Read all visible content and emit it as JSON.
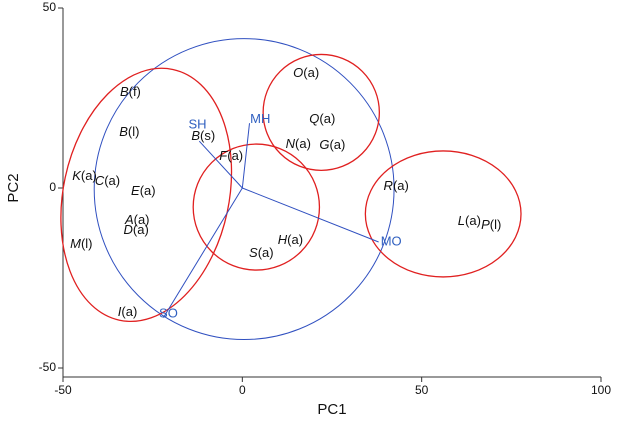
{
  "chart_data": {
    "type": "biplot",
    "x_label": "PC1",
    "y_label": "PC2",
    "xlim": [
      -50,
      100
    ],
    "ylim": [
      -50,
      50
    ],
    "xticks": [
      -50,
      0,
      50,
      100
    ],
    "yticks": [
      -50,
      0,
      50
    ],
    "points": [
      {
        "letter": "B",
        "suffix": "(f)",
        "x": -31.2,
        "y": 26.4
      },
      {
        "letter": "B",
        "suffix": "(l)",
        "x": -31.5,
        "y": 15.3
      },
      {
        "letter": "B",
        "suffix": "(s)",
        "x": -10.9,
        "y": 14.2
      },
      {
        "letter": "F",
        "suffix": "(a)",
        "x": -3.1,
        "y": 8.6
      },
      {
        "letter": "K",
        "suffix": "(a)",
        "x": -44,
        "y": 3.1
      },
      {
        "letter": "C",
        "suffix": "(a)",
        "x": -37.6,
        "y": 1.7
      },
      {
        "letter": "E",
        "suffix": "(a)",
        "x": -27.6,
        "y": -1.1
      },
      {
        "letter": "A",
        "suffix": "(a)",
        "x": -29.3,
        "y": -9.2
      },
      {
        "letter": "D",
        "suffix": "(a)",
        "x": -29.6,
        "y": -11.9
      },
      {
        "letter": "M",
        "suffix": "(l)",
        "x": -44.9,
        "y": -15.8
      },
      {
        "letter": "I",
        "suffix": "(a)",
        "x": -32,
        "y": -34.7
      },
      {
        "letter": "O",
        "suffix": "(a)",
        "x": 17.8,
        "y": 31.7
      },
      {
        "letter": "Q",
        "suffix": "(a)",
        "x": 22.3,
        "y": 18.9
      },
      {
        "letter": "N",
        "suffix": "(a)",
        "x": 15.6,
        "y": 11.9
      },
      {
        "letter": "G",
        "suffix": "(a)",
        "x": 25.1,
        "y": 11.7
      },
      {
        "letter": "R",
        "suffix": "(a)",
        "x": 42.9,
        "y": 0.3
      },
      {
        "letter": "H",
        "suffix": "(a)",
        "x": 13.4,
        "y": -14.7
      },
      {
        "letter": "S",
        "suffix": "(a)",
        "x": 5.3,
        "y": -18.3
      },
      {
        "letter": "L",
        "suffix": "(a)",
        "x": 63.3,
        "y": -9.4
      },
      {
        "letter": "P",
        "suffix": "(l)",
        "x": 69.4,
        "y": -10.6
      }
    ],
    "variables": [
      {
        "name": "SH",
        "x": -12,
        "y": 13,
        "label_x": -12.5,
        "label_y": 17.5
      },
      {
        "name": "MH",
        "x": 2,
        "y": 18,
        "label_x": 5,
        "label_y": 19
      },
      {
        "name": "MO",
        "x": 38,
        "y": -15,
        "label_x": 41.5,
        "label_y": -15
      },
      {
        "name": "SO",
        "x": -22,
        "y": -36,
        "label_x": -20.6,
        "label_y": -35
      }
    ],
    "vector_color": "#3050c0",
    "correlation_circle": {
      "cx": 0.5,
      "cy": -0.3,
      "rx": 41.8,
      "ry": 41.8,
      "color": "#3050c0"
    },
    "groups": [
      {
        "cx": -26.8,
        "cy": -1.9,
        "rx": 23.1,
        "ry": 35.6,
        "angle": 12,
        "color": "#e02020"
      },
      {
        "cx": 22,
        "cy": 21,
        "rx": 16.2,
        "ry": 16.1,
        "angle": 0,
        "color": "#e02020"
      },
      {
        "cx": 3.9,
        "cy": -5.3,
        "rx": 17.6,
        "ry": 17.5,
        "angle": 0,
        "color": "#e02020"
      },
      {
        "cx": 56,
        "cy": -7.2,
        "rx": 21.7,
        "ry": 17.5,
        "angle": 0,
        "color": "#e02020"
      }
    ]
  }
}
